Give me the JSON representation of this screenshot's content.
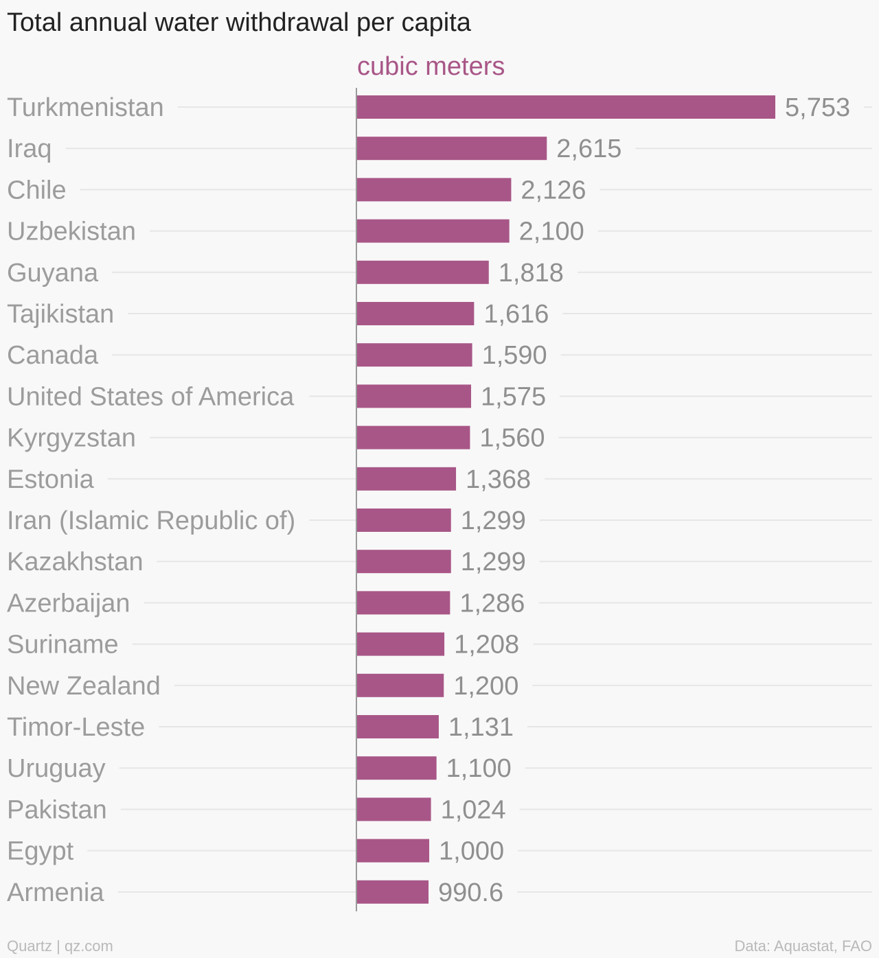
{
  "title": "Total annual water withdrawal per capita",
  "footer": {
    "credit": "Quartz | qz.com",
    "source": "Data: Aquastat, FAO"
  },
  "colors": {
    "bar": "#a85687",
    "category_text": "#9c9c9c",
    "value_text": "#8f8f8f",
    "gridline": "#e6e6e6",
    "axis": "#9a9a9a",
    "title": "#222222",
    "background": "#f8f8f8"
  },
  "chart_data": {
    "type": "bar",
    "orientation": "horizontal",
    "title": "Total annual water withdrawal per capita",
    "xlabel": "",
    "ylabel": "",
    "categories": [
      "Turkmenistan",
      "Iraq",
      "Chile",
      "Uzbekistan",
      "Guyana",
      "Tajikistan",
      "Canada",
      "United States of America",
      "Kyrgyzstan",
      "Estonia",
      "Iran (Islamic Republic of)",
      "Kazakhstan",
      "Azerbaijan",
      "Suriname",
      "New Zealand",
      "Timor-Leste",
      "Uruguay",
      "Pakistan",
      "Egypt",
      "Armenia"
    ],
    "series": [
      {
        "name": "cubic meters",
        "values": [
          5753,
          2615,
          2126,
          2100,
          1818,
          1616,
          1590,
          1575,
          1560,
          1368,
          1299,
          1299,
          1286,
          1208,
          1200,
          1131,
          1100,
          1024,
          1000,
          990.6
        ],
        "labels": [
          "5,753",
          "2,615",
          "2,126",
          "2,100",
          "1,818",
          "1,616",
          "1,590",
          "1,575",
          "1,560",
          "1,368",
          "1,299",
          "1,299",
          "1,286",
          "1,208",
          "1,200",
          "1,131",
          "1,100",
          "1,024",
          "1,000",
          "990.6"
        ]
      }
    ],
    "xlim": [
      0,
      5753
    ],
    "grid": true,
    "legend": "top"
  }
}
